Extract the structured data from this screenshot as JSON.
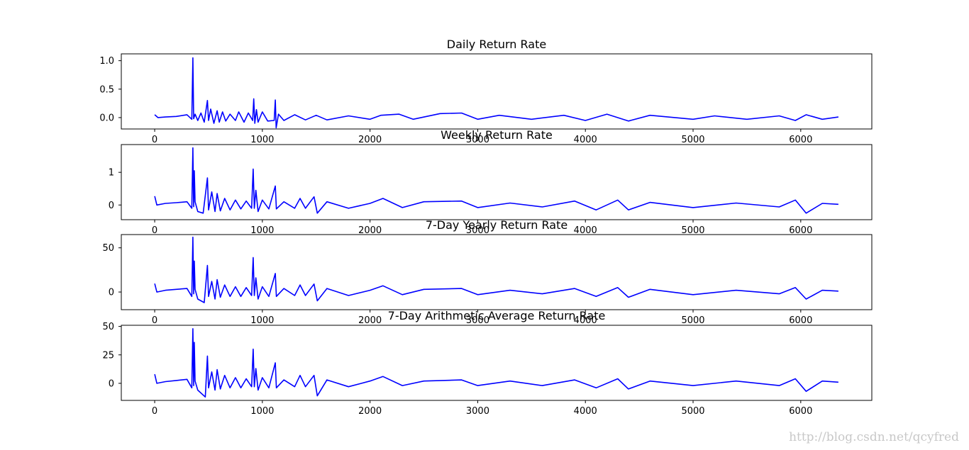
{
  "watermark": "http://blog.csdn.net/qcyfred",
  "colors": {
    "series": "#0000ff",
    "axes": "#000000",
    "background": "#ffffff"
  },
  "chart_data": [
    {
      "type": "line",
      "title": "Daily Return Rate",
      "xlabel": "",
      "ylabel": "",
      "xlim": [
        -310,
        6660
      ],
      "ylim": [
        -0.2,
        1.12
      ],
      "xticks": [
        0,
        1000,
        2000,
        3000,
        4000,
        5000,
        6000
      ],
      "yticks": [
        0.0,
        0.5,
        1.0
      ],
      "ytick_labels": [
        "0.0",
        "0.5",
        "1.0"
      ],
      "grid": false,
      "series": [
        {
          "values": [
            [
              0,
              0.05
            ],
            [
              30,
              0.0
            ],
            [
              100,
              0.01
            ],
            [
              200,
              0.02
            ],
            [
              300,
              0.05
            ],
            [
              345,
              -0.03
            ],
            [
              355,
              1.05
            ],
            [
              362,
              -0.02
            ],
            [
              375,
              0.06
            ],
            [
              400,
              -0.05
            ],
            [
              430,
              0.08
            ],
            [
              460,
              -0.08
            ],
            [
              490,
              0.3
            ],
            [
              500,
              -0.05
            ],
            [
              520,
              0.15
            ],
            [
              550,
              -0.1
            ],
            [
              580,
              0.12
            ],
            [
              600,
              -0.08
            ],
            [
              630,
              0.1
            ],
            [
              660,
              -0.06
            ],
            [
              700,
              0.06
            ],
            [
              750,
              -0.05
            ],
            [
              780,
              0.1
            ],
            [
              830,
              -0.08
            ],
            [
              870,
              0.08
            ],
            [
              910,
              -0.05
            ],
            [
              920,
              0.33
            ],
            [
              930,
              -0.1
            ],
            [
              945,
              0.14
            ],
            [
              960,
              -0.08
            ],
            [
              1000,
              0.1
            ],
            [
              1050,
              -0.06
            ],
            [
              1110,
              -0.05
            ],
            [
              1120,
              0.31
            ],
            [
              1128,
              -0.18
            ],
            [
              1150,
              0.06
            ],
            [
              1200,
              -0.05
            ],
            [
              1300,
              0.05
            ],
            [
              1400,
              -0.04
            ],
            [
              1500,
              0.04
            ],
            [
              1600,
              -0.04
            ],
            [
              1800,
              0.03
            ],
            [
              2000,
              -0.03
            ],
            [
              2100,
              0.04
            ],
            [
              2270,
              0.06
            ],
            [
              2400,
              -0.03
            ],
            [
              2650,
              0.07
            ],
            [
              2850,
              0.08
            ],
            [
              3000,
              -0.03
            ],
            [
              3200,
              0.04
            ],
            [
              3500,
              -0.03
            ],
            [
              3800,
              0.04
            ],
            [
              4000,
              -0.05
            ],
            [
              4200,
              0.06
            ],
            [
              4400,
              -0.06
            ],
            [
              4600,
              0.04
            ],
            [
              5000,
              -0.03
            ],
            [
              5200,
              0.03
            ],
            [
              5500,
              -0.03
            ],
            [
              5800,
              0.03
            ],
            [
              5950,
              -0.05
            ],
            [
              6050,
              0.05
            ],
            [
              6200,
              -0.03
            ],
            [
              6350,
              0.01
            ]
          ]
        }
      ]
    },
    {
      "type": "line",
      "title": "Weekly Return Rate",
      "xlabel": "",
      "ylabel": "",
      "xlim": [
        -310,
        6660
      ],
      "ylim": [
        -0.45,
        1.85
      ],
      "xticks": [
        0,
        1000,
        2000,
        3000,
        4000,
        5000,
        6000
      ],
      "yticks": [
        0,
        1
      ],
      "ytick_labels": [
        "0",
        "1"
      ],
      "grid": false,
      "series": [
        {
          "values": [
            [
              0,
              0.27
            ],
            [
              20,
              0.0
            ],
            [
              100,
              0.05
            ],
            [
              200,
              0.07
            ],
            [
              300,
              0.1
            ],
            [
              345,
              -0.1
            ],
            [
              355,
              1.75
            ],
            [
              362,
              -0.05
            ],
            [
              368,
              1.05
            ],
            [
              375,
              0.1
            ],
            [
              400,
              -0.2
            ],
            [
              450,
              -0.25
            ],
            [
              490,
              0.83
            ],
            [
              500,
              -0.15
            ],
            [
              530,
              0.4
            ],
            [
              560,
              -0.2
            ],
            [
              580,
              0.35
            ],
            [
              610,
              -0.18
            ],
            [
              650,
              0.2
            ],
            [
              700,
              -0.15
            ],
            [
              750,
              0.15
            ],
            [
              800,
              -0.12
            ],
            [
              850,
              0.12
            ],
            [
              900,
              -0.1
            ],
            [
              915,
              1.1
            ],
            [
              925,
              -0.1
            ],
            [
              940,
              0.45
            ],
            [
              960,
              -0.2
            ],
            [
              1000,
              0.15
            ],
            [
              1060,
              -0.12
            ],
            [
              1120,
              0.58
            ],
            [
              1130,
              -0.12
            ],
            [
              1200,
              0.1
            ],
            [
              1300,
              -0.1
            ],
            [
              1350,
              0.2
            ],
            [
              1400,
              -0.1
            ],
            [
              1480,
              0.25
            ],
            [
              1510,
              -0.25
            ],
            [
              1600,
              0.1
            ],
            [
              1800,
              -0.1
            ],
            [
              2000,
              0.05
            ],
            [
              2120,
              0.2
            ],
            [
              2300,
              -0.08
            ],
            [
              2500,
              0.1
            ],
            [
              2850,
              0.12
            ],
            [
              3000,
              -0.08
            ],
            [
              3300,
              0.06
            ],
            [
              3600,
              -0.06
            ],
            [
              3900,
              0.12
            ],
            [
              4100,
              -0.15
            ],
            [
              4300,
              0.15
            ],
            [
              4400,
              -0.15
            ],
            [
              4600,
              0.08
            ],
            [
              5000,
              -0.08
            ],
            [
              5400,
              0.06
            ],
            [
              5800,
              -0.06
            ],
            [
              5950,
              0.15
            ],
            [
              6050,
              -0.25
            ],
            [
              6200,
              0.05
            ],
            [
              6350,
              0.02
            ]
          ]
        }
      ]
    },
    {
      "type": "line",
      "title": "7-Day Yearly Return Rate",
      "xlabel": "",
      "ylabel": "",
      "xlim": [
        -310,
        6660
      ],
      "ylim": [
        -20,
        65
      ],
      "xticks": [
        0,
        1000,
        2000,
        3000,
        4000,
        5000,
        6000
      ],
      "yticks": [
        0,
        50
      ],
      "ytick_labels": [
        "0",
        "50"
      ],
      "grid": false,
      "series": [
        {
          "values": [
            [
              0,
              9.5
            ],
            [
              20,
              0.0
            ],
            [
              100,
              2.0
            ],
            [
              200,
              3.0
            ],
            [
              300,
              4.0
            ],
            [
              345,
              -5.0
            ],
            [
              355,
              62.0
            ],
            [
              362,
              -2.0
            ],
            [
              368,
              35.0
            ],
            [
              375,
              3.0
            ],
            [
              400,
              -8.0
            ],
            [
              460,
              -12.0
            ],
            [
              490,
              30.0
            ],
            [
              500,
              -5.0
            ],
            [
              530,
              12.0
            ],
            [
              560,
              -8.0
            ],
            [
              580,
              14.0
            ],
            [
              610,
              -6.0
            ],
            [
              650,
              8.0
            ],
            [
              700,
              -5.0
            ],
            [
              750,
              6.0
            ],
            [
              800,
              -5.0
            ],
            [
              850,
              5.0
            ],
            [
              900,
              -4.0
            ],
            [
              915,
              39.0
            ],
            [
              925,
              -4.0
            ],
            [
              940,
              16.0
            ],
            [
              960,
              -8.0
            ],
            [
              1000,
              6.0
            ],
            [
              1060,
              -5.0
            ],
            [
              1120,
              21.0
            ],
            [
              1130,
              -5.0
            ],
            [
              1200,
              4.0
            ],
            [
              1300,
              -4.0
            ],
            [
              1350,
              8.0
            ],
            [
              1400,
              -4.0
            ],
            [
              1480,
              9.0
            ],
            [
              1510,
              -10.0
            ],
            [
              1600,
              4.0
            ],
            [
              1800,
              -4.0
            ],
            [
              2000,
              2.0
            ],
            [
              2120,
              7.0
            ],
            [
              2300,
              -3.0
            ],
            [
              2500,
              3.0
            ],
            [
              2850,
              4.0
            ],
            [
              3000,
              -3.0
            ],
            [
              3300,
              2.0
            ],
            [
              3600,
              -2.0
            ],
            [
              3900,
              4.0
            ],
            [
              4100,
              -5.0
            ],
            [
              4300,
              5.0
            ],
            [
              4400,
              -6.0
            ],
            [
              4600,
              3.0
            ],
            [
              5000,
              -3.0
            ],
            [
              5400,
              2.0
            ],
            [
              5800,
              -2.0
            ],
            [
              5950,
              5.0
            ],
            [
              6050,
              -8.0
            ],
            [
              6200,
              2.0
            ],
            [
              6350,
              1.0
            ]
          ]
        }
      ]
    },
    {
      "type": "line",
      "title": "7-Day Arithmetic Average Return Rate",
      "xlabel": "",
      "ylabel": "",
      "xlim": [
        -310,
        6660
      ],
      "ylim": [
        -15,
        51
      ],
      "xticks": [
        0,
        1000,
        2000,
        3000,
        4000,
        5000,
        6000
      ],
      "yticks": [
        0,
        25,
        50
      ],
      "ytick_labels": [
        "0",
        "25",
        "50"
      ],
      "grid": false,
      "series": [
        {
          "values": [
            [
              0,
              8.0
            ],
            [
              20,
              0.0
            ],
            [
              100,
              1.5
            ],
            [
              200,
              2.5
            ],
            [
              300,
              3.5
            ],
            [
              345,
              -4.0
            ],
            [
              355,
              48.0
            ],
            [
              362,
              -2.0
            ],
            [
              368,
              36.0
            ],
            [
              375,
              2.0
            ],
            [
              400,
              -6.0
            ],
            [
              470,
              -12.0
            ],
            [
              490,
              24.0
            ],
            [
              500,
              -4.0
            ],
            [
              530,
              10.0
            ],
            [
              560,
              -6.0
            ],
            [
              580,
              12.0
            ],
            [
              610,
              -5.0
            ],
            [
              650,
              7.0
            ],
            [
              700,
              -4.0
            ],
            [
              750,
              5.0
            ],
            [
              800,
              -4.0
            ],
            [
              850,
              4.0
            ],
            [
              900,
              -3.0
            ],
            [
              915,
              30.0
            ],
            [
              925,
              -3.0
            ],
            [
              940,
              13.0
            ],
            [
              960,
              -6.0
            ],
            [
              1000,
              5.0
            ],
            [
              1060,
              -4.0
            ],
            [
              1120,
              18.0
            ],
            [
              1130,
              -4.0
            ],
            [
              1200,
              3.0
            ],
            [
              1300,
              -3.0
            ],
            [
              1350,
              7.0
            ],
            [
              1400,
              -3.0
            ],
            [
              1480,
              7.0
            ],
            [
              1510,
              -11.0
            ],
            [
              1600,
              3.0
            ],
            [
              1800,
              -3.0
            ],
            [
              2000,
              2.0
            ],
            [
              2120,
              6.0
            ],
            [
              2300,
              -2.0
            ],
            [
              2500,
              2.0
            ],
            [
              2850,
              3.0
            ],
            [
              3000,
              -2.0
            ],
            [
              3300,
              2.0
            ],
            [
              3600,
              -2.0
            ],
            [
              3900,
              3.0
            ],
            [
              4100,
              -4.0
            ],
            [
              4300,
              4.0
            ],
            [
              4400,
              -5.0
            ],
            [
              4600,
              2.0
            ],
            [
              5000,
              -2.0
            ],
            [
              5400,
              2.0
            ],
            [
              5800,
              -2.0
            ],
            [
              5950,
              4.0
            ],
            [
              6050,
              -7.0
            ],
            [
              6200,
              2.0
            ],
            [
              6350,
              1.0
            ]
          ]
        }
      ]
    }
  ]
}
